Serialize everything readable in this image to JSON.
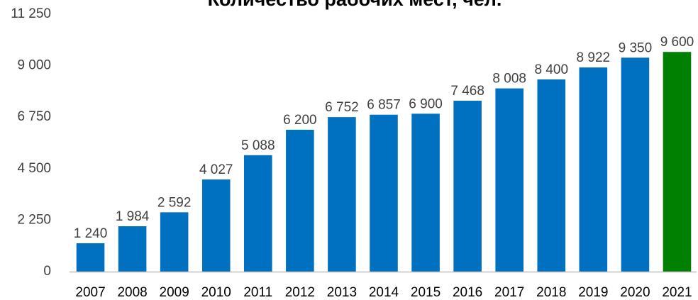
{
  "chart_data": {
    "type": "bar",
    "title": "Количество рабочих мест, чел.",
    "categories": [
      "2007",
      "2008",
      "2009",
      "2010",
      "2011",
      "2012",
      "2013",
      "2014",
      "2015",
      "2016",
      "2017",
      "2018",
      "2019",
      "2020",
      "2021"
    ],
    "values": [
      1240,
      1984,
      2592,
      4027,
      5088,
      6200,
      6752,
      6857,
      6900,
      7468,
      8008,
      8400,
      8922,
      9350,
      9600
    ],
    "value_labels": [
      "1 240",
      "1 984",
      "2 592",
      "4 027",
      "5 088",
      "6 200",
      "6 752",
      "6 857",
      "6 900",
      "7 468",
      "8 008",
      "8 400",
      "8 922",
      "9 350",
      "9 600"
    ],
    "ylim": [
      0,
      11250
    ],
    "yticks": [
      0,
      2250,
      4500,
      6750,
      9000,
      11250
    ],
    "ytick_labels": [
      "0",
      "2 250",
      "4 500",
      "6 750",
      "9 000",
      "11 250"
    ],
    "grid": false,
    "legend": "none",
    "colors": {
      "bar": "#0070c0",
      "highlight": "#008000",
      "highlight_category": "2021",
      "axis": "#bfbfbf"
    }
  }
}
